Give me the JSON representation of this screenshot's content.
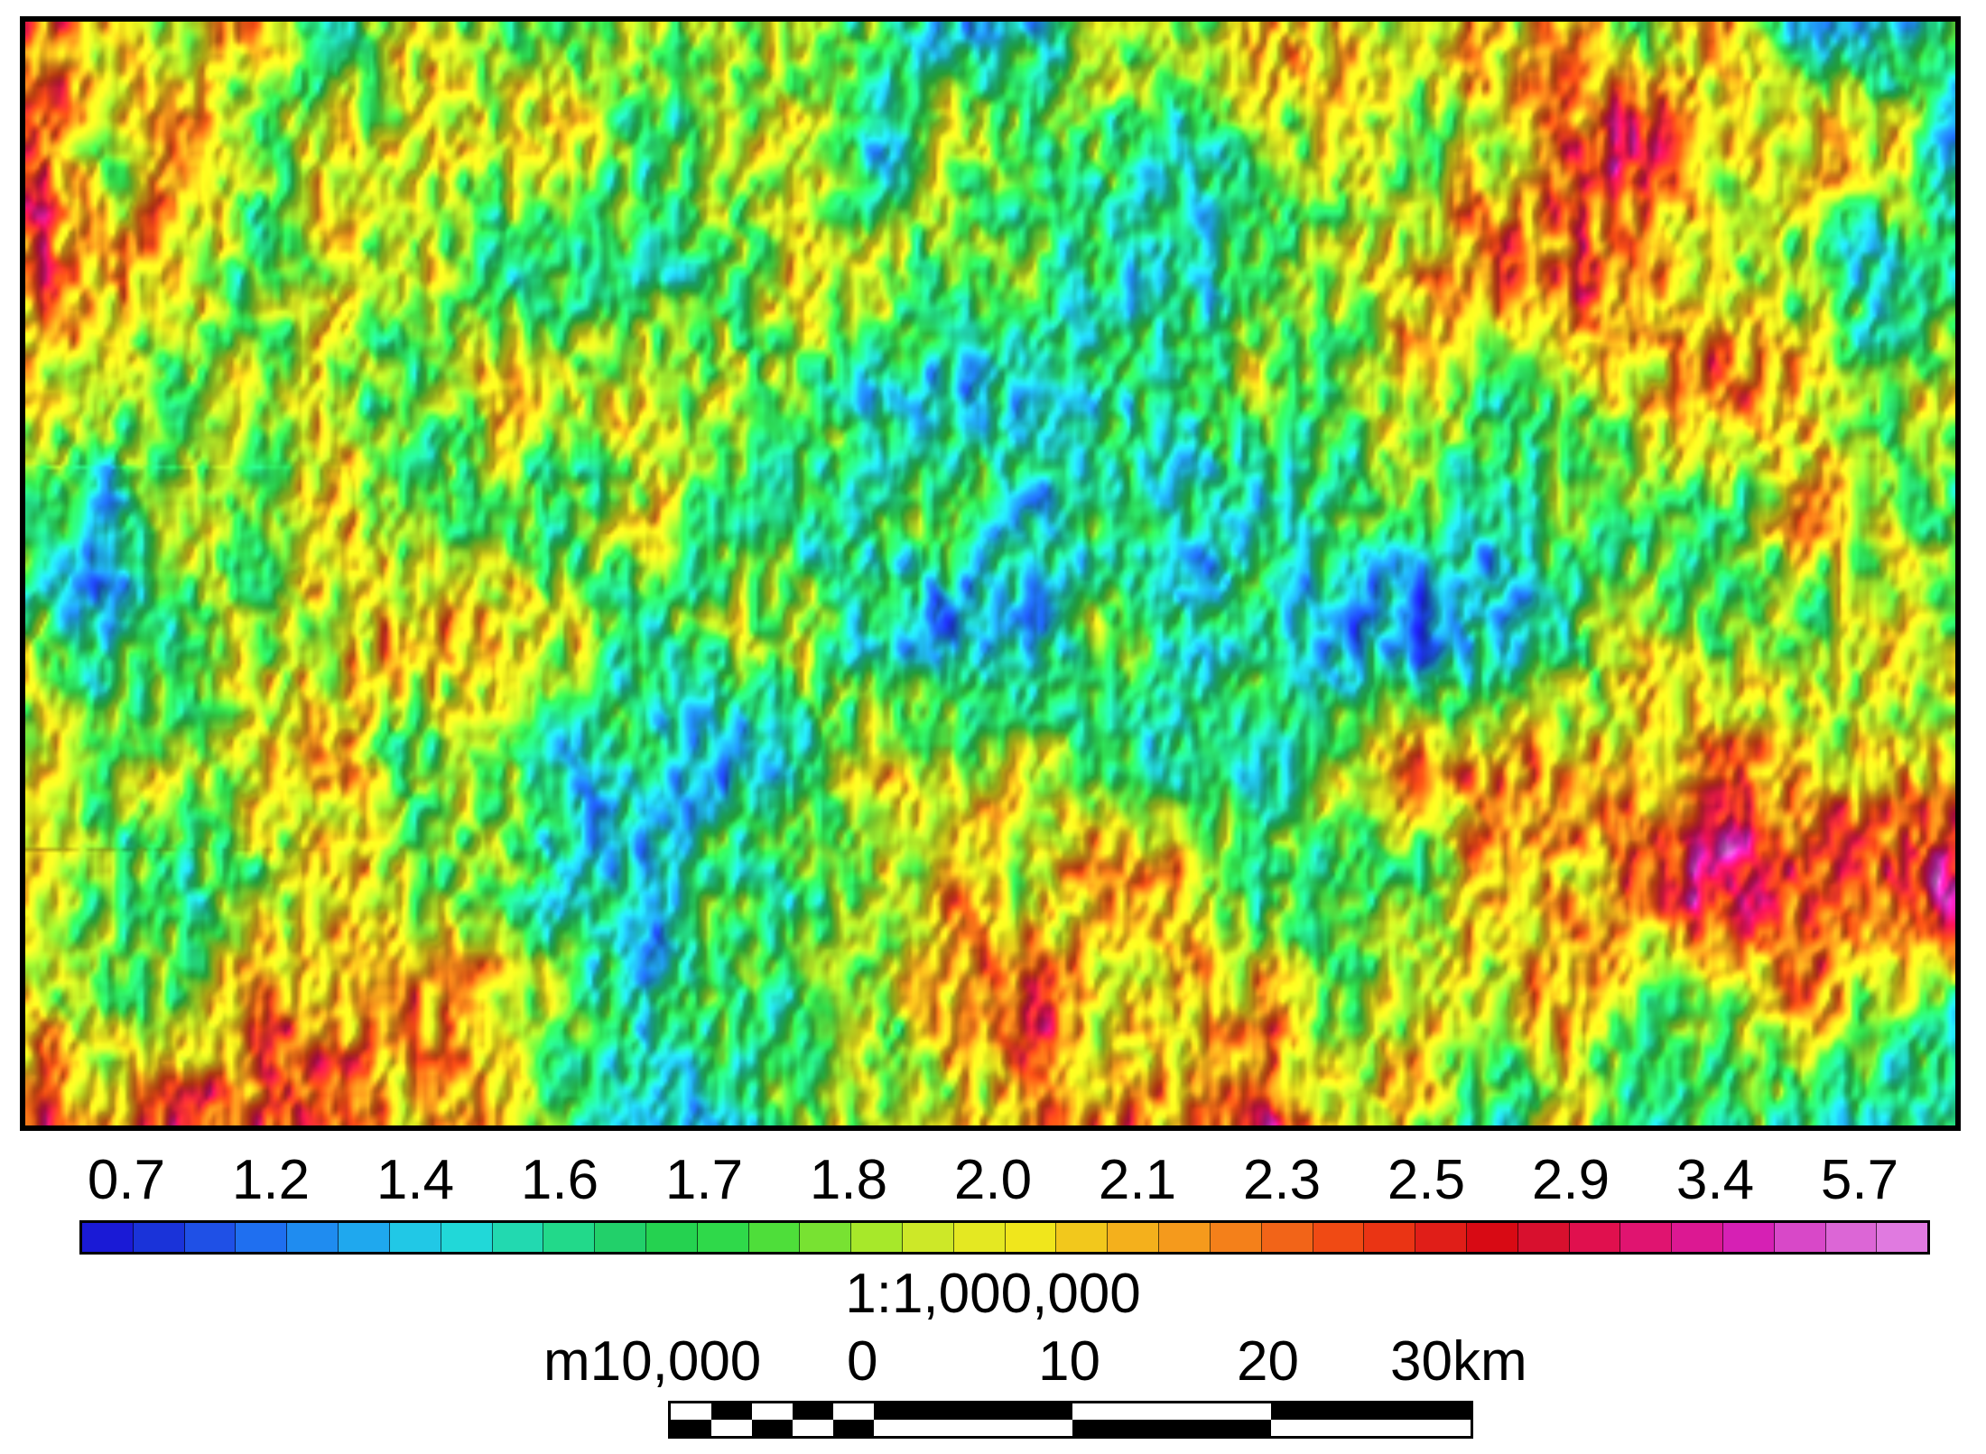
{
  "map": {
    "image": "magnetic-anomaly-hillshade-map",
    "palette": [
      "#1a1ad6",
      "#1f6ff0",
      "#21c8e6",
      "#22d98a",
      "#2fd94a",
      "#a7e82a",
      "#f0e61c",
      "#f59a1c",
      "#f04a14",
      "#e0104e",
      "#d620b4",
      "#e07ae0"
    ]
  },
  "legend": {
    "tick_labels": [
      "0.7",
      "1.2",
      "1.4",
      "1.6",
      "1.7",
      "1.8",
      "2.0",
      "2.1",
      "2.3",
      "2.5",
      "2.9",
      "3.4",
      "5.7"
    ],
    "colors": [
      "#1a1ad6",
      "#1a33d9",
      "#1f50e6",
      "#1f6ff0",
      "#1f8cf0",
      "#1fa8ee",
      "#21c8e6",
      "#21d8d8",
      "#22d9b0",
      "#22d98a",
      "#22d06a",
      "#25d250",
      "#2fd94a",
      "#4ede3a",
      "#78e232",
      "#a7e82a",
      "#cde828",
      "#e4e822",
      "#f0e61c",
      "#f2c81c",
      "#f4b01c",
      "#f59a1c",
      "#f4801a",
      "#f26418",
      "#f04a14",
      "#ea3414",
      "#e01e18",
      "#d80a14",
      "#d8102e",
      "#e0104e",
      "#e01470",
      "#dc1892",
      "#d620b4",
      "#d848c8",
      "#dc66d6",
      "#e07ae0"
    ]
  },
  "scale": {
    "ratio": "1:1,000,000",
    "labels": [
      "m10,000",
      "0",
      "10",
      "20",
      "30km"
    ]
  }
}
